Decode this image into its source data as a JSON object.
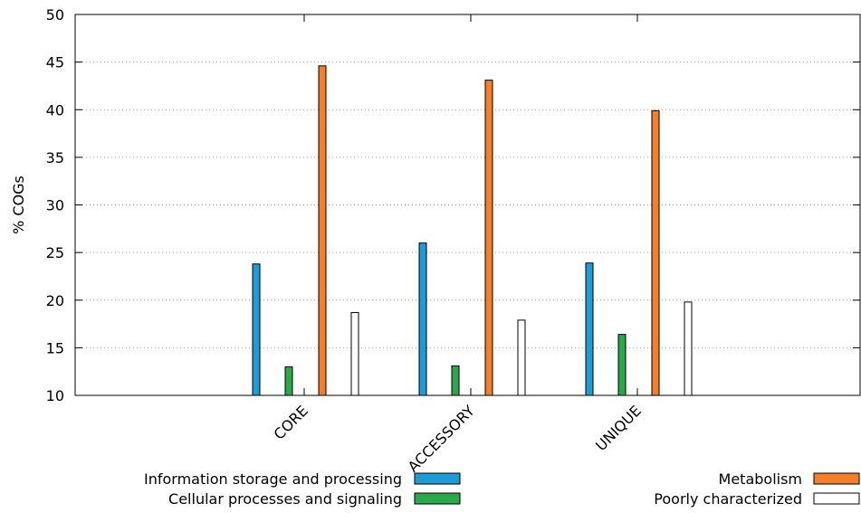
{
  "chart_data": {
    "type": "bar",
    "title": "",
    "xlabel": "",
    "ylabel": "% COGs",
    "ylim": [
      10,
      50
    ],
    "yticks": [
      10,
      15,
      20,
      25,
      30,
      35,
      40,
      45,
      50
    ],
    "grid": true,
    "categories": [
      "CORE",
      "ACCESSORY",
      "UNIQUE"
    ],
    "legend_placement": "bottom",
    "series": [
      {
        "name": "Information storage and processing",
        "color": "#1f9bd8",
        "values": [
          23.8,
          26.0,
          23.9
        ]
      },
      {
        "name": "Cellular processes and signaling",
        "color": "#2aa84a",
        "values": [
          13.0,
          13.1,
          16.4
        ]
      },
      {
        "name": "Metabolism",
        "color": "#f47f2a",
        "values": [
          44.6,
          43.1,
          39.9
        ]
      },
      {
        "name": "Poorly characterized",
        "color": "#ffffff",
        "values": [
          18.7,
          17.9,
          19.8
        ]
      }
    ]
  }
}
